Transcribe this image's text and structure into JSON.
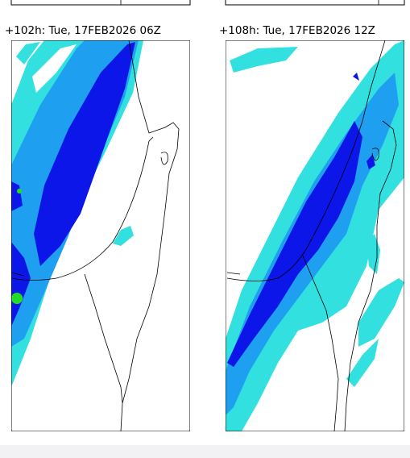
{
  "panels": [
    {
      "title": "+102h: Tue, 17FEB2026 06Z"
    },
    {
      "title": "+108h: Tue, 17FEB2026 12Z"
    }
  ]
}
